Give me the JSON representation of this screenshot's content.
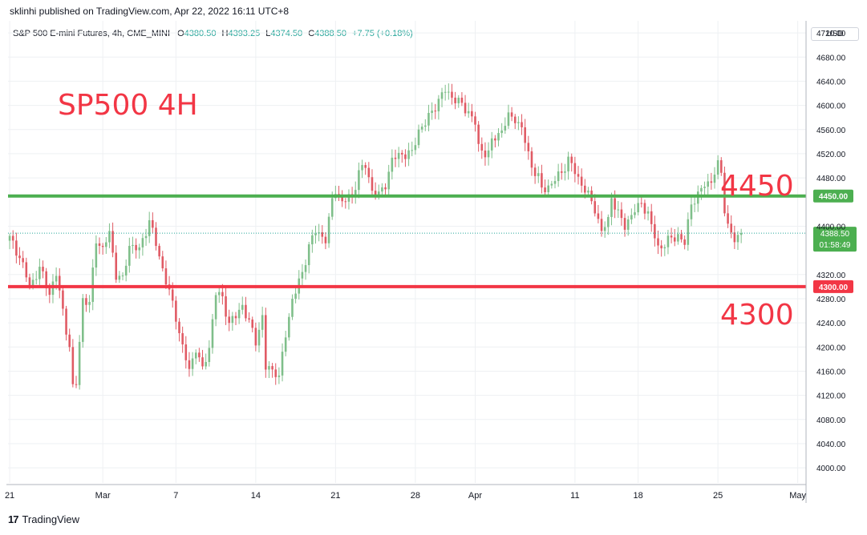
{
  "header": {
    "publisher": "sklinhi published on TradingView.com, Apr 22, 2022 16:11 UTC+8"
  },
  "legend": {
    "symbol": "S&P 500 E-mini Futures, 4h, CME_MINI",
    "o_label": "O",
    "o_value": "4380.50",
    "h_label": "H",
    "h_value": "4393.25",
    "l_label": "L",
    "l_value": "4374.50",
    "c_label": "C",
    "c_value": "4388.50",
    "change": "+7.75 (+0.18%)"
  },
  "currency_button": "USD",
  "footer": {
    "brand": "TradingView",
    "logo_icon": "tradingview-logo-icon"
  },
  "colors": {
    "up": "#26a69a",
    "down": "#ef5350",
    "up_body": "#7fbf8a",
    "down_body": "#e05a64",
    "line_green": "#4caf50",
    "line_red": "#f23645",
    "grid": "#eef0f3",
    "text_red": "#f23645"
  },
  "chart_data": {
    "type": "candlestick",
    "annotations": {
      "title": "SP500 4H",
      "level_high_label": "4450",
      "level_low_label": "4300"
    },
    "horizontal_lines": [
      {
        "price": 4450,
        "label": "4450.00",
        "color": "#4caf50"
      },
      {
        "price": 4300,
        "label": "4300.00",
        "color": "#f23645"
      }
    ],
    "last_price": {
      "price": 4388.5,
      "label": "4388.50",
      "countdown": "01:58:49"
    },
    "y_axis": {
      "ylim": [
        3975,
        4740
      ],
      "ticks": [
        "4720.00",
        "4680.00",
        "4640.00",
        "4600.00",
        "4560.00",
        "4520.00",
        "4480.00",
        "4400.00",
        "4320.00",
        "4280.00",
        "4240.00",
        "4200.00",
        "4160.00",
        "4120.00",
        "4080.00",
        "4040.00",
        "4000.00"
      ]
    },
    "x_axis": {
      "ticks": [
        {
          "label": "21",
          "i": 0
        },
        {
          "label": "Mar",
          "i": 28
        },
        {
          "label": "7",
          "i": 50
        },
        {
          "label": "14",
          "i": 74
        },
        {
          "label": "21",
          "i": 98
        },
        {
          "label": "28",
          "i": 122
        },
        {
          "label": "Apr",
          "i": 140
        },
        {
          "label": "11",
          "i": 170
        },
        {
          "label": "18",
          "i": 189
        },
        {
          "label": "25",
          "i": 213
        },
        {
          "label": "May",
          "i": 237
        }
      ]
    },
    "x_range": [
      -0.5,
      239.5
    ],
    "close_path": [
      [
        0,
        4380
      ],
      [
        3,
        4350
      ],
      [
        6,
        4300
      ],
      [
        9,
        4330
      ],
      [
        12,
        4290
      ],
      [
        14,
        4320
      ],
      [
        16,
        4260
      ],
      [
        18,
        4200
      ],
      [
        19,
        4130
      ],
      [
        20,
        4140
      ],
      [
        22,
        4280
      ],
      [
        24,
        4270
      ],
      [
        26,
        4380
      ],
      [
        28,
        4360
      ],
      [
        30,
        4390
      ],
      [
        32,
        4320
      ],
      [
        34,
        4310
      ],
      [
        36,
        4370
      ],
      [
        39,
        4360
      ],
      [
        42,
        4410
      ],
      [
        44,
        4370
      ],
      [
        46,
        4330
      ],
      [
        48,
        4290
      ],
      [
        50,
        4250
      ],
      [
        52,
        4200
      ],
      [
        54,
        4160
      ],
      [
        56,
        4200
      ],
      [
        58,
        4160
      ],
      [
        60,
        4200
      ],
      [
        62,
        4290
      ],
      [
        64,
        4280
      ],
      [
        66,
        4240
      ],
      [
        68,
        4250
      ],
      [
        70,
        4270
      ],
      [
        72,
        4240
      ],
      [
        74,
        4210
      ],
      [
        76,
        4250
      ],
      [
        77,
        4165
      ],
      [
        80,
        4160
      ],
      [
        81,
        4150
      ],
      [
        83,
        4220
      ],
      [
        85,
        4280
      ],
      [
        88,
        4320
      ],
      [
        90,
        4370
      ],
      [
        92,
        4390
      ],
      [
        95,
        4380
      ],
      [
        97,
        4440
      ],
      [
        98,
        4460
      ],
      [
        100,
        4440
      ],
      [
        103,
        4450
      ],
      [
        105,
        4490
      ],
      [
        107,
        4500
      ],
      [
        109,
        4460
      ],
      [
        111,
        4450
      ],
      [
        113,
        4470
      ],
      [
        115,
        4510
      ],
      [
        118,
        4520
      ],
      [
        121,
        4520
      ],
      [
        123,
        4560
      ],
      [
        125,
        4570
      ],
      [
        128,
        4600
      ],
      [
        131,
        4625
      ],
      [
        134,
        4610
      ],
      [
        136,
        4600
      ],
      [
        138,
        4590
      ],
      [
        140,
        4570
      ],
      [
        141,
        4530
      ],
      [
        144,
        4520
      ],
      [
        145,
        4540
      ],
      [
        148,
        4560
      ],
      [
        150,
        4580
      ],
      [
        152,
        4580
      ],
      [
        154,
        4560
      ],
      [
        156,
        4520
      ],
      [
        157,
        4500
      ],
      [
        159,
        4480
      ],
      [
        160,
        4460
      ],
      [
        163,
        4470
      ],
      [
        166,
        4490
      ],
      [
        168,
        4510
      ],
      [
        170,
        4490
      ],
      [
        172,
        4470
      ],
      [
        174,
        4450
      ],
      [
        176,
        4430
      ],
      [
        178,
        4390
      ],
      [
        180,
        4410
      ],
      [
        181,
        4450
      ],
      [
        183,
        4420
      ],
      [
        185,
        4400
      ],
      [
        187,
        4420
      ],
      [
        189,
        4430
      ],
      [
        190,
        4440
      ],
      [
        192,
        4420
      ],
      [
        193,
        4400
      ],
      [
        195,
        4365
      ],
      [
        197,
        4370
      ],
      [
        199,
        4380
      ],
      [
        201,
        4385
      ],
      [
        203,
        4370
      ],
      [
        205,
        4440
      ],
      [
        207,
        4450
      ],
      [
        209,
        4470
      ],
      [
        211,
        4475
      ],
      [
        213,
        4500
      ],
      [
        214,
        4490
      ],
      [
        215,
        4430
      ],
      [
        216,
        4400
      ],
      [
        218,
        4375
      ],
      [
        220,
        4388
      ]
    ]
  }
}
